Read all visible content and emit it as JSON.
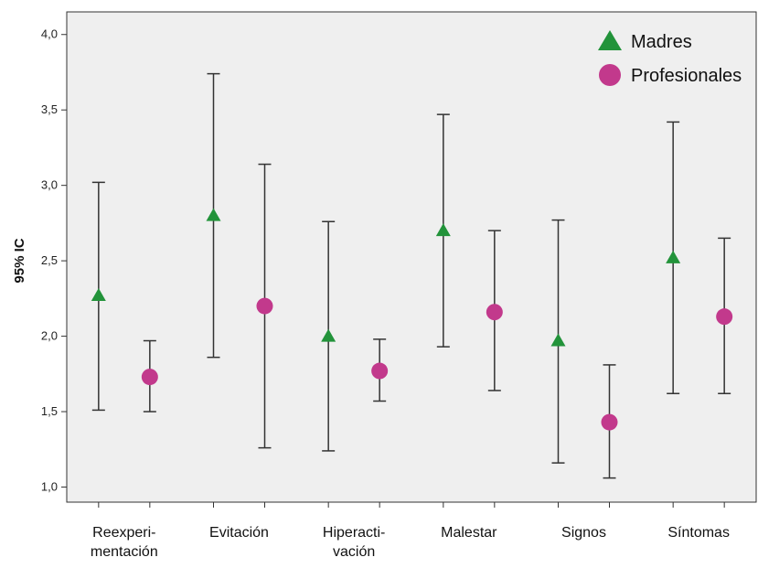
{
  "chart_data": {
    "type": "errorbar",
    "title": "",
    "xlabel": "",
    "ylabel": "95% IC",
    "ylim": [
      0.9,
      4.15
    ],
    "grid": false,
    "legend_position": "top-right",
    "y_ticks": [
      "1,0",
      "1,5",
      "2,0",
      "2,5",
      "3,0",
      "3,5",
      "4,0"
    ],
    "y_tick_values": [
      1.0,
      1.5,
      2.0,
      2.5,
      3.0,
      3.5,
      4.0
    ],
    "categories": [
      [
        "Reexperi-",
        "mentación"
      ],
      [
        "Evitación"
      ],
      [
        "Hiperacti-",
        "vación"
      ],
      [
        "Malestar"
      ],
      [
        "Signos"
      ],
      [
        "Síntomas"
      ]
    ],
    "series": [
      {
        "name": "Madres",
        "marker": "triangle",
        "color": "#22933a",
        "mean": [
          2.27,
          2.8,
          2.0,
          2.7,
          1.97,
          2.52
        ],
        "lower": [
          1.51,
          1.86,
          1.24,
          1.93,
          1.16,
          1.62
        ],
        "upper": [
          3.02,
          3.74,
          2.76,
          3.47,
          2.77,
          3.42
        ]
      },
      {
        "name": "Profesionales",
        "marker": "circle",
        "color": "#c2398c",
        "mean": [
          1.73,
          2.2,
          1.77,
          2.16,
          1.43,
          2.13
        ],
        "lower": [
          1.5,
          1.26,
          1.57,
          1.64,
          1.06,
          1.62
        ],
        "upper": [
          1.97,
          3.14,
          1.98,
          2.7,
          1.81,
          2.65
        ]
      }
    ],
    "colors": {
      "plot_background": "#efefef",
      "axis": "#333333",
      "error_bar": "#333333"
    }
  }
}
